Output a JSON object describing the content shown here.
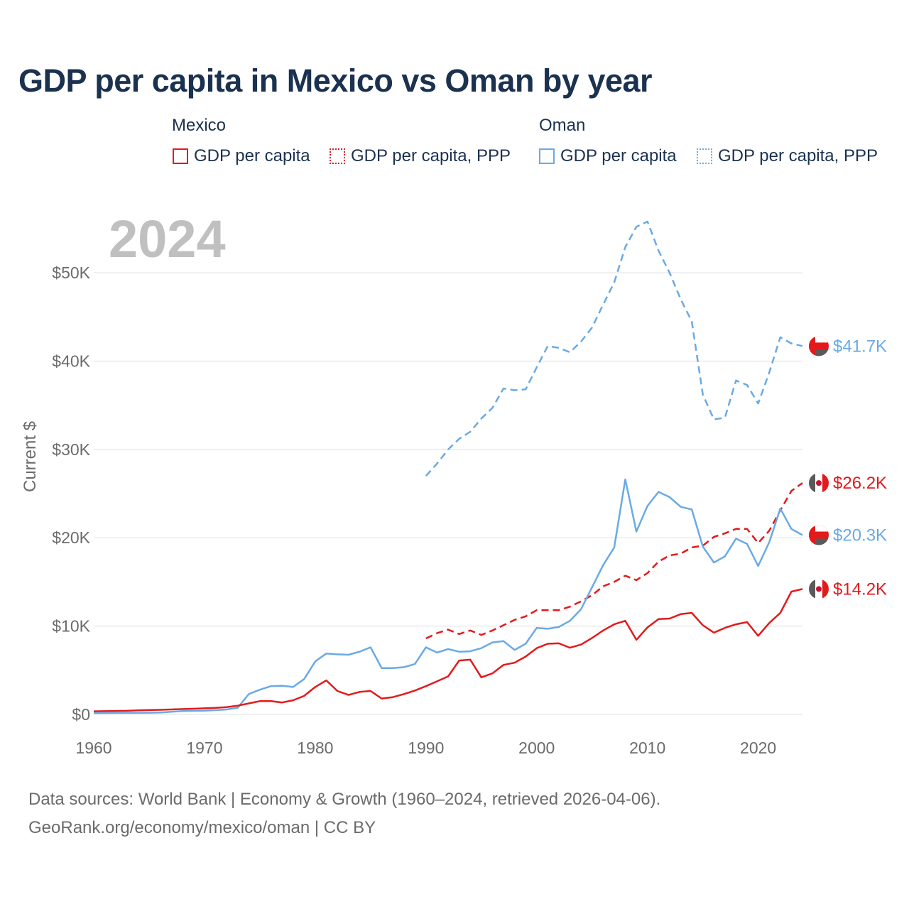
{
  "title": "GDP per capita in Mexico vs Oman by year",
  "legend": {
    "groups": [
      {
        "country": "Mexico",
        "items": [
          "GDP per capita",
          "GDP per capita, PPP"
        ]
      },
      {
        "country": "Oman",
        "items": [
          "GDP per capita",
          "GDP per capita, PPP"
        ]
      }
    ]
  },
  "source": {
    "line1": "Data sources: World Bank | Economy & Growth (1960–2024, retrieved 2026-04-06).",
    "line2": "GeoRank.org/economy/mexico/oman | CC BY"
  },
  "colors": {
    "mexico": "#e31a1c",
    "oman": "#6aaae4",
    "grid": "#e6e6e6",
    "year_watermark": "#c0c0c0"
  },
  "chart_data": {
    "type": "line",
    "year_label": "2024",
    "ylabel": "Current $",
    "xlim": [
      1960,
      2024
    ],
    "ylim": [
      0,
      55000
    ],
    "x_ticks": [
      1960,
      1970,
      1980,
      1990,
      2000,
      2010,
      2020
    ],
    "y_ticks": [
      {
        "value": 0,
        "label": "$0"
      },
      {
        "value": 10000,
        "label": "$10K"
      },
      {
        "value": 20000,
        "label": "$20K"
      },
      {
        "value": 30000,
        "label": "$30K"
      },
      {
        "value": 40000,
        "label": "$40K"
      },
      {
        "value": 50000,
        "label": "$50K"
      }
    ],
    "series": [
      {
        "name": "Oman GDP per capita, PPP",
        "country": "oman",
        "style": "dashed",
        "end_label": "$41.7K",
        "x": [
          1990,
          1991,
          1992,
          1993,
          1994,
          1995,
          1996,
          1997,
          1998,
          1999,
          2000,
          2001,
          2002,
          2003,
          2004,
          2005,
          2006,
          2007,
          2008,
          2009,
          2010,
          2011,
          2012,
          2013,
          2014,
          2015,
          2016,
          2017,
          2018,
          2019,
          2020,
          2021,
          2022,
          2023,
          2024
        ],
        "values": [
          27000,
          28400,
          30000,
          31200,
          32000,
          33500,
          34700,
          36900,
          36700,
          36800,
          39300,
          41700,
          41500,
          41000,
          42200,
          43800,
          46400,
          48900,
          52900,
          55200,
          55800,
          52500,
          50000,
          47000,
          44500,
          36200,
          33400,
          33600,
          37800,
          37300,
          35200,
          38700,
          42700,
          42000,
          41700
        ]
      },
      {
        "name": "Mexico GDP per capita, PPP",
        "country": "mexico",
        "style": "dashed",
        "end_label": "$26.2K",
        "x": [
          1990,
          1991,
          1992,
          1993,
          1994,
          1995,
          1996,
          1997,
          1998,
          1999,
          2000,
          2001,
          2002,
          2003,
          2004,
          2005,
          2006,
          2007,
          2008,
          2009,
          2010,
          2011,
          2012,
          2013,
          2014,
          2015,
          2016,
          2017,
          2018,
          2019,
          2020,
          2021,
          2022,
          2023,
          2024
        ],
        "values": [
          8600,
          9200,
          9600,
          9100,
          9500,
          9000,
          9500,
          10100,
          10700,
          11100,
          11800,
          11800,
          11800,
          12200,
          12800,
          13500,
          14500,
          15000,
          15700,
          15200,
          16000,
          17300,
          18000,
          18200,
          18900,
          19100,
          20100,
          20500,
          21000,
          21000,
          19400,
          20800,
          23100,
          25300,
          26200
        ]
      },
      {
        "name": "Oman GDP per capita",
        "country": "oman",
        "style": "solid",
        "end_label": "$20.3K",
        "x": [
          1960,
          1961,
          1962,
          1963,
          1964,
          1965,
          1966,
          1967,
          1968,
          1969,
          1970,
          1971,
          1972,
          1973,
          1974,
          1975,
          1976,
          1977,
          1978,
          1979,
          1980,
          1981,
          1982,
          1983,
          1984,
          1985,
          1986,
          1987,
          1988,
          1989,
          1990,
          1991,
          1992,
          1993,
          1994,
          1995,
          1996,
          1997,
          1998,
          1999,
          2000,
          2001,
          2002,
          2003,
          2004,
          2005,
          2006,
          2007,
          2008,
          2009,
          2010,
          2011,
          2012,
          2013,
          2014,
          2015,
          2016,
          2017,
          2018,
          2019,
          2020,
          2021,
          2022,
          2023,
          2024
        ],
        "values": [
          150,
          160,
          170,
          175,
          180,
          190,
          210,
          300,
          380,
          400,
          430,
          480,
          560,
          750,
          2300,
          2800,
          3200,
          3250,
          3100,
          4000,
          6000,
          6900,
          6800,
          6750,
          7100,
          7600,
          5250,
          5250,
          5350,
          5700,
          7600,
          7000,
          7400,
          7100,
          7150,
          7500,
          8150,
          8300,
          7300,
          8000,
          9800,
          9700,
          9900,
          10600,
          11900,
          14400,
          16900,
          18900,
          26600,
          20700,
          23600,
          25200,
          24600,
          23500,
          23200,
          19000,
          17200,
          17900,
          19900,
          19300,
          16800,
          19500,
          23300,
          21000,
          20300
        ]
      },
      {
        "name": "Mexico GDP per capita",
        "country": "mexico",
        "style": "solid",
        "end_label": "$14.2K",
        "x": [
          1960,
          1961,
          1962,
          1963,
          1964,
          1965,
          1966,
          1967,
          1968,
          1969,
          1970,
          1971,
          1972,
          1973,
          1974,
          1975,
          1976,
          1977,
          1978,
          1979,
          1980,
          1981,
          1982,
          1983,
          1984,
          1985,
          1986,
          1987,
          1988,
          1989,
          1990,
          1991,
          1992,
          1993,
          1994,
          1995,
          1996,
          1997,
          1998,
          1999,
          2000,
          2001,
          2002,
          2003,
          2004,
          2005,
          2006,
          2007,
          2008,
          2009,
          2010,
          2011,
          2012,
          2013,
          2014,
          2015,
          2016,
          2017,
          2018,
          2019,
          2020,
          2021,
          2022,
          2023,
          2024
        ],
        "values": [
          350,
          370,
          390,
          410,
          460,
          490,
          520,
          560,
          600,
          640,
          690,
          740,
          830,
          990,
          1250,
          1500,
          1500,
          1350,
          1600,
          2100,
          3100,
          3850,
          2650,
          2200,
          2550,
          2650,
          1800,
          1950,
          2300,
          2700,
          3200,
          3750,
          4300,
          6100,
          6200,
          4200,
          4650,
          5600,
          5850,
          6550,
          7500,
          8000,
          8050,
          7550,
          7900,
          8650,
          9500,
          10200,
          10600,
          8450,
          9850,
          10800,
          10850,
          11350,
          11500,
          10100,
          9250,
          9800,
          10200,
          10450,
          8900,
          10350,
          11500,
          13900,
          14200
        ]
      }
    ]
  }
}
